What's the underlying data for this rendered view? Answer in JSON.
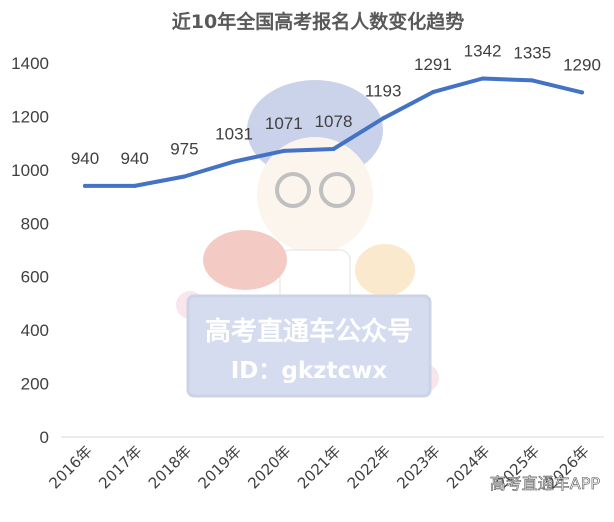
{
  "chart_data": {
    "type": "line",
    "title": "近10年全国高考报名人数变化趋势",
    "categories": [
      "2016年",
      "2017年",
      "2018年",
      "2019年",
      "2020年",
      "2021年",
      "2022年",
      "2023年",
      "2024年",
      "2025年",
      "2026年"
    ],
    "series": [
      {
        "values": [
          940,
          940,
          975,
          1031,
          1071,
          1078,
          1193,
          1291,
          1342,
          1335,
          1290
        ]
      }
    ],
    "ylim": [
      0,
      1400
    ],
    "yticks": [
      "0",
      "200",
      "400",
      "600",
      "800",
      "1000",
      "1200",
      "1400"
    ],
    "grid": false,
    "line_color": "#4472C4"
  },
  "watermark": {
    "line1": "高考直通车公众号",
    "line2": "ID：gkztcwx",
    "corner": "高考直通车APP"
  }
}
